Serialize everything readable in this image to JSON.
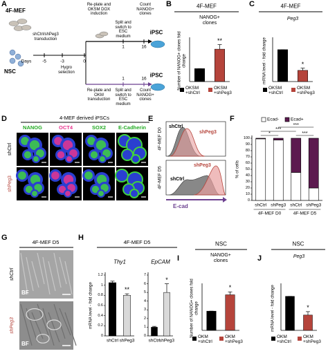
{
  "diagram": {
    "label": "A",
    "source_mef": "4F-MEF",
    "source_nsc": "NSC",
    "transduction": "shCtrl/shPeg3 transduction",
    "days_label": "Days",
    "day_ticks": [
      "-5",
      "-3",
      "0"
    ],
    "hygro": "Hygro selection",
    "mef_path": {
      "step1": "Re-plate and OKSM DOX induction",
      "step2": "Split and switch to ESC medium",
      "step3": "Count NANOG+ clones",
      "day2": "1",
      "day3": "16",
      "result": "iPSC"
    },
    "nsc_path": {
      "step1": "Re-plate and OKM transduction",
      "step2": "Split and switch to ESC medium",
      "step3": "Count NANOG+ clones",
      "day2": "1",
      "day3": "16",
      "result": "iPSC"
    }
  },
  "chart_data": [
    {
      "type": "bar",
      "label": "B",
      "title": "4F-MEF",
      "subtitle": "NANOG+ clones",
      "y_label": "Number of NANOG+ clones fold change",
      "categories": [
        "OKSM +shCtrl",
        "OKSM +shPeg3"
      ],
      "values": [
        1,
        2.5
      ],
      "errors": [
        0,
        0.35
      ],
      "colors": [
        "#000000",
        "#b5443b"
      ],
      "significance": [
        null,
        "**"
      ],
      "ylim": [
        0,
        3.2
      ],
      "legend": true
    },
    {
      "type": "bar",
      "label": "C",
      "title": "4F-MEF",
      "subtitle": "Peg3",
      "y_label": "mRNA level - fold change",
      "categories": [
        "OKSM +shCtrl",
        "OKSM +shPeg3"
      ],
      "values": [
        1,
        0.35
      ],
      "errors": [
        0,
        0.07
      ],
      "colors": [
        "#000000",
        "#b5443b"
      ],
      "significance": [
        null,
        "*"
      ],
      "ylim": [
        0,
        1.3
      ],
      "legend": true
    },
    {
      "type": "stacked_bar",
      "label": "F",
      "y_label": "% of cells",
      "categories": [
        "shCtrl",
        "shPeg3",
        "shCtrl",
        "shPeg3"
      ],
      "groups": [
        "4F-MEF D0",
        "4F-MEF D5"
      ],
      "series": [
        {
          "name": "Ecad-",
          "color": "#ffffff",
          "values": [
            99,
            97,
            45,
            20
          ]
        },
        {
          "name": "Ecad+",
          "color": "#5c1a4f",
          "values": [
            1,
            3,
            55,
            80
          ]
        }
      ],
      "significance": [
        "*",
        "***",
        "***",
        "***"
      ],
      "ylim": [
        0,
        100
      ],
      "yticks": [
        0,
        10,
        20,
        30,
        40,
        50,
        60,
        70,
        80,
        90,
        100
      ]
    },
    {
      "type": "bar",
      "title": "Thy1",
      "y_label": "mRNA level - fold change",
      "categories": [
        "shCtrl",
        "shPeg3"
      ],
      "values": [
        1.05,
        0.8
      ],
      "errors": [
        0.03,
        0.03
      ],
      "colors": [
        "#000000",
        "#d9d9d9"
      ],
      "significance": [
        null,
        "**"
      ],
      "ylim": [
        0,
        1.2
      ],
      "yticks": [
        0,
        0.2,
        0.4,
        0.6,
        0.8,
        1,
        1.2
      ],
      "legend": false
    },
    {
      "type": "bar",
      "title": "EpCAM",
      "categories": [
        "shCtrl",
        "shPeg3"
      ],
      "values": [
        1,
        5
      ],
      "errors": [
        0.1,
        1
      ],
      "colors": [
        "#000000",
        "#d9d9d9"
      ],
      "significance": [
        null,
        "*"
      ],
      "ylim": [
        0,
        7
      ],
      "yticks": [
        0,
        1,
        2,
        3,
        4,
        5,
        6,
        7
      ],
      "legend": false
    },
    {
      "type": "bar",
      "label": "I",
      "title": "NSC",
      "subtitle": "NANOG+ clones",
      "y_label": "Number of NANOG+ clones fold change",
      "categories": [
        "OKM +shCtrl",
        "OKM +shPeg3"
      ],
      "values": [
        1,
        1.85
      ],
      "errors": [
        0,
        0.15
      ],
      "colors": [
        "#000000",
        "#b5443b"
      ],
      "significance": [
        null,
        "*"
      ],
      "ylim": [
        0,
        2.3
      ],
      "legend": true
    },
    {
      "type": "bar",
      "label": "J",
      "title": "NSC",
      "subtitle": "Peg3",
      "y_label": "mRNA level - fold change",
      "categories": [
        "OKM +shCtrl",
        "OKM +shPeg3"
      ],
      "values": [
        1,
        0.45
      ],
      "errors": [
        0,
        0.1
      ],
      "colors": [
        "#000000",
        "#b5443b"
      ],
      "significance": [
        null,
        "*"
      ],
      "ylim": [
        0,
        1.3
      ],
      "legend": true
    }
  ],
  "panel_D": {
    "label": "D",
    "title": "4-MEF derived iPSCs",
    "columns": [
      "NANOG",
      "OCT4",
      "SOX2",
      "E-Cadherin"
    ],
    "rows": [
      "shCtrl",
      "shPeg3"
    ]
  },
  "panel_E": {
    "label": "E",
    "rows": [
      "4F-MEF D0",
      "4F-MEF D5"
    ],
    "legend": [
      "shCtrl",
      "shPeg3"
    ],
    "x_label": "E-cad"
  },
  "panel_G": {
    "label": "G",
    "title": "4F-MEF D5",
    "rows": [
      "shCtrl",
      "shPeg3"
    ],
    "image_label": "BF"
  },
  "panel_H": {
    "label": "H",
    "title": "4F-MEF D5"
  }
}
